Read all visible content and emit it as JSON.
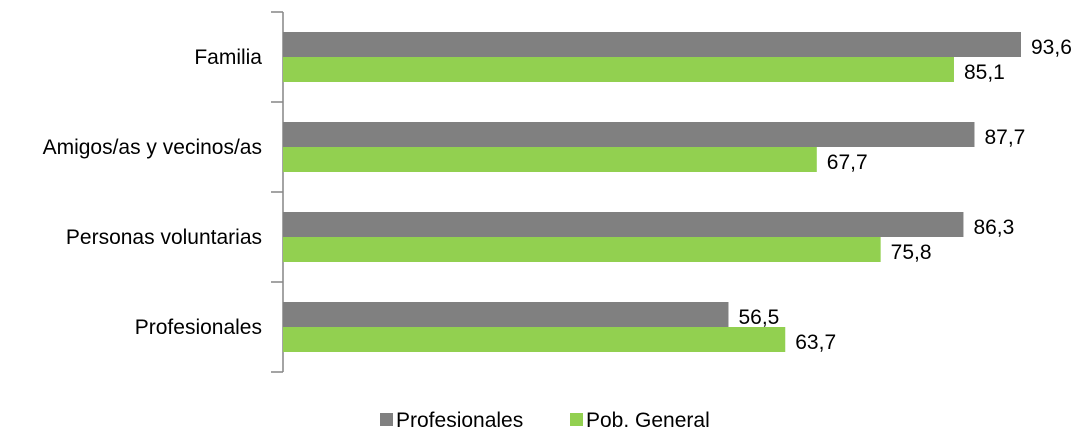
{
  "chart_data": {
    "type": "bar",
    "orientation": "horizontal",
    "categories": [
      "Familia",
      "Amigos/as y vecinos/as",
      "Personas voluntarias",
      "Profesionales"
    ],
    "series": [
      {
        "name": "Profesionales",
        "values": [
          93.6,
          87.7,
          86.3,
          56.5
        ],
        "labels": [
          "93,6",
          "87,7",
          "86,3",
          "56,5"
        ],
        "color": "#808080"
      },
      {
        "name": "Pob. General",
        "values": [
          85.1,
          67.7,
          75.8,
          63.7
        ],
        "labels": [
          "85,1",
          "67,7",
          "75,8",
          "63,7"
        ],
        "color": "#92d050"
      }
    ],
    "xlim": [
      0,
      100
    ],
    "grid": false,
    "legend": "bottom"
  }
}
